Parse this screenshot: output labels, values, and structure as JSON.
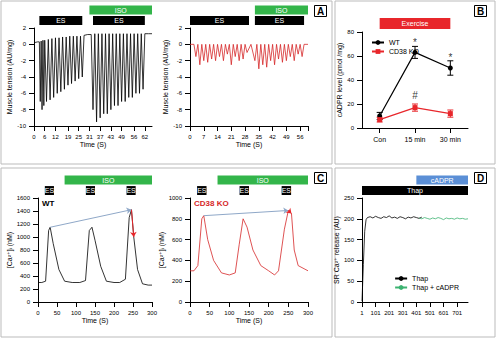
{
  "chart_data": [
    {
      "panel": "A",
      "type": "line",
      "x_label": "Time (S)",
      "y_label": "Muscle tension (AU/mg)",
      "x": [
        0,
        2,
        3,
        3.5,
        4,
        4.5,
        5,
        5.5,
        6,
        7,
        8,
        9,
        10,
        11,
        12,
        13,
        14,
        15,
        16,
        17,
        18,
        19,
        20,
        21,
        22,
        23,
        24,
        25,
        26,
        27,
        28,
        30,
        32,
        33,
        34,
        35,
        36,
        37,
        38,
        39,
        40,
        41,
        42,
        43,
        44,
        45,
        46,
        47,
        48,
        49,
        50,
        51,
        52,
        53,
        54,
        55,
        56,
        57,
        58,
        59,
        60,
        61,
        62,
        64,
        66
      ],
      "values": [
        0.2,
        0.3,
        0.3,
        -7,
        0.4,
        -8,
        0.5,
        -7.5,
        0.5,
        -7,
        0.6,
        -6.8,
        0.7,
        -6.5,
        0.8,
        -6,
        0.8,
        -5.8,
        0.9,
        -5.5,
        0.9,
        -5,
        1,
        -4.8,
        1,
        -4.5,
        1,
        -4.2,
        1,
        -4,
        1.1,
        1.2,
        1.2,
        -8,
        1.3,
        -9.5,
        1.3,
        -9,
        1.3,
        -8.5,
        1.3,
        -8.5,
        1.3,
        -8,
        1.3,
        -7.5,
        1.3,
        -7.5,
        1.3,
        -7,
        1.3,
        -7,
        1.3,
        -6.5,
        1.3,
        -6.5,
        1.3,
        -6,
        1.3,
        -6,
        1.3,
        -5.5,
        1.3,
        1.3,
        1.3
      ],
      "color": "#000000",
      "xlim": [
        0,
        66
      ],
      "xticks": [
        0,
        6,
        12,
        19,
        25,
        31,
        37,
        43,
        49,
        56,
        62
      ],
      "ylim": [
        -10,
        2
      ],
      "yticks": [
        -10,
        -8,
        -6,
        -4,
        -2,
        0,
        2
      ],
      "grid": false,
      "top_bars": [
        {
          "label": "ISO",
          "start": 31,
          "end": 66,
          "color": "#33b54a"
        }
      ],
      "bars": [
        {
          "label": "ES",
          "start": 3,
          "end": 27,
          "color": "#000000"
        },
        {
          "label": "ES",
          "start": 33,
          "end": 62,
          "color": "#000000"
        }
      ]
    },
    {
      "type": "line",
      "x_label": "Time (S)",
      "y_label": "Muscle tension (AU/mg)",
      "x": [
        0,
        2,
        3,
        4,
        5,
        6,
        7,
        8,
        9,
        10,
        11,
        12,
        13,
        14,
        15,
        16,
        17,
        18,
        19,
        20,
        21,
        22,
        23,
        24,
        25,
        26,
        27,
        28,
        29,
        31,
        33,
        34,
        35,
        36,
        37,
        38,
        39,
        40,
        41,
        42,
        43,
        44,
        45,
        46,
        47,
        48,
        49,
        50,
        51,
        52,
        53,
        54,
        55,
        56,
        57,
        58,
        60
      ],
      "values": [
        0,
        0,
        -1.5,
        0,
        -2.5,
        0,
        -2,
        0,
        -2.2,
        0,
        -1.8,
        0,
        -2,
        0,
        -1.5,
        0,
        -2,
        0,
        -1.2,
        0,
        -2.5,
        0,
        -1.5,
        0,
        -2,
        0,
        -1.8,
        0,
        -1,
        0,
        -2,
        0,
        -3,
        0,
        -2.5,
        0,
        -2.8,
        0,
        -2,
        0,
        -2.5,
        0,
        -1.8,
        0,
        -2.2,
        0,
        -2,
        0,
        -1.5,
        0,
        -2,
        0,
        -1.2,
        0,
        -1.5,
        0,
        0
      ],
      "color": "#d62728",
      "xlim": [
        0,
        60
      ],
      "xticks": [
        0,
        7,
        14,
        21,
        28,
        35,
        42,
        49,
        56
      ],
      "ylim": [
        -10,
        2
      ],
      "yticks": [
        -10,
        -8,
        -6,
        -4,
        -2,
        0,
        2
      ],
      "grid": false,
      "top_bars": [
        {
          "label": "ISO",
          "start": 33,
          "end": 60,
          "color": "#33b54a"
        }
      ],
      "bars": [
        {
          "label": "ES",
          "start": 0,
          "end": 30,
          "color": "#000000"
        },
        {
          "label": "ES",
          "start": 33,
          "end": 58,
          "color": "#000000"
        }
      ]
    },
    {
      "panel": "B",
      "type": "line",
      "y_label": "cADPR level (pmol /mg)",
      "categories": [
        "Con",
        "15 min",
        "30 min"
      ],
      "series": [
        {
          "name": "WT",
          "color": "#000000",
          "marker": "circle",
          "values": [
            10,
            63,
            50
          ],
          "errors": [
            3,
            5,
            6
          ]
        },
        {
          "name": "CD38 KO",
          "color": "#e8262b",
          "marker": "square",
          "values": [
            7,
            17,
            12
          ],
          "errors": [
            2,
            3,
            3
          ]
        }
      ],
      "ylim": [
        0,
        80
      ],
      "yticks": [
        0,
        20,
        40,
        60,
        80
      ],
      "grid": false,
      "legend": "upper left",
      "annotations": [
        {
          "text": "*",
          "x": "15 min",
          "y": 71
        },
        {
          "text": "*",
          "x": "30 min",
          "y": 59
        },
        {
          "text": "#",
          "x": "15 min",
          "y": 27
        }
      ],
      "top_bars": [
        {
          "label": "Exercise",
          "start": "Con",
          "end": "30 min",
          "color": "#e8262b"
        }
      ]
    },
    {
      "panel": "C",
      "type": "line",
      "title": "WT",
      "x_label": "Time (S)",
      "y_label": "[Ca²⁺]ᵢ (nM)",
      "x": [
        0,
        10,
        20,
        28,
        32,
        40,
        55,
        70,
        90,
        110,
        125,
        135,
        142,
        150,
        165,
        180,
        200,
        215,
        230,
        240,
        246,
        252,
        262,
        275,
        290,
        300
      ],
      "values": [
        300,
        300,
        320,
        1100,
        1150,
        900,
        500,
        320,
        300,
        300,
        330,
        1100,
        1150,
        950,
        550,
        320,
        300,
        300,
        350,
        1300,
        1420,
        1000,
        500,
        280,
        260,
        260
      ],
      "color": "#000000",
      "xlim": [
        0,
        300
      ],
      "xticks": [
        0,
        50,
        100,
        150,
        200,
        250,
        300
      ],
      "ylim": [
        0,
        1600
      ],
      "yticks": [
        0,
        200,
        400,
        600,
        800,
        1000,
        1200,
        1400,
        1600
      ],
      "grid": false,
      "top_bars": [
        {
          "label": "ISO",
          "start": 70,
          "end": 300,
          "color": "#33b54a"
        }
      ],
      "bars": [
        {
          "label": "ES",
          "start": 18,
          "end": 42,
          "color": "#000000"
        },
        {
          "label": "ES",
          "start": 126,
          "end": 150,
          "color": "#000000"
        },
        {
          "label": "ES",
          "start": 233,
          "end": 257,
          "color": "#000000"
        }
      ]
    },
    {
      "type": "line",
      "title": "CD38 KO",
      "x_label": "Time (S)",
      "y_label": "[Ca²⁺]ᵢ (nM)",
      "x": [
        0,
        10,
        20,
        30,
        35,
        45,
        60,
        80,
        100,
        115,
        125,
        135,
        145,
        160,
        180,
        200,
        215,
        225,
        240,
        250,
        258,
        265,
        275,
        290,
        300
      ],
      "values": [
        300,
        300,
        350,
        800,
        830,
        600,
        400,
        280,
        260,
        280,
        550,
        800,
        720,
        500,
        350,
        300,
        260,
        300,
        700,
        880,
        850,
        500,
        350,
        320,
        300
      ],
      "color": "#d62728",
      "xlim": [
        0,
        300
      ],
      "xticks": [
        0,
        50,
        100,
        150,
        200,
        250,
        300
      ],
      "ylim": [
        0,
        1000
      ],
      "yticks": [
        0,
        200,
        400,
        600,
        800,
        1000
      ],
      "grid": false,
      "top_bars": [
        {
          "label": "ISO",
          "start": 70,
          "end": 300,
          "color": "#33b54a"
        }
      ],
      "bars": [
        {
          "label": "ES",
          "start": 18,
          "end": 42,
          "color": "#000000"
        },
        {
          "label": "ES",
          "start": 126,
          "end": 150,
          "color": "#000000"
        },
        {
          "label": "ES",
          "start": 233,
          "end": 257,
          "color": "#000000"
        }
      ]
    },
    {
      "panel": "D",
      "type": "line",
      "y_label": "SR Ca²⁺ release (AU)",
      "x": [
        1,
        11,
        21,
        31,
        41,
        61,
        81,
        101,
        121,
        141,
        161,
        181,
        201,
        221,
        241,
        261,
        281,
        301,
        321,
        341,
        361,
        381,
        401,
        421,
        441,
        461,
        481,
        501,
        521,
        541,
        561,
        581,
        601,
        621,
        641,
        661,
        681,
        701,
        721,
        741,
        761,
        781
      ],
      "series": [
        {
          "name": "Thap",
          "color": "#000000",
          "values": [
            2,
            90,
            170,
            198,
            203,
            205,
            202,
            206,
            203,
            201,
            205,
            203,
            207,
            202,
            204,
            201,
            205,
            203,
            200,
            204,
            202,
            205,
            203,
            201,
            204,
            null,
            null,
            null,
            null,
            null,
            null,
            null,
            null,
            null,
            null,
            null,
            null,
            null,
            null,
            null,
            null,
            null
          ]
        },
        {
          "name": "Thap + cADPR",
          "color": "#3cb371",
          "values": [
            null,
            null,
            null,
            null,
            null,
            null,
            null,
            null,
            null,
            null,
            null,
            null,
            null,
            null,
            null,
            null,
            null,
            null,
            null,
            null,
            null,
            null,
            null,
            202,
            200,
            203,
            201,
            199,
            202,
            200,
            203,
            201,
            198,
            202,
            200,
            201,
            199,
            202,
            200,
            201,
            199,
            200
          ]
        }
      ],
      "xlim": [
        1,
        781
      ],
      "xticks": [
        1,
        101,
        201,
        301,
        401,
        501,
        601,
        701
      ],
      "ylim": [
        0,
        250
      ],
      "yticks": [
        0,
        50,
        100,
        150,
        200,
        250
      ],
      "grid": false,
      "legend": "lower right",
      "top_bars": [
        {
          "label": "cADPR",
          "start": 401,
          "end": 781,
          "color": "#5b8fd6"
        }
      ],
      "bars": [
        {
          "label": "Thap",
          "start": 1,
          "end": 781,
          "color": "#000000"
        }
      ]
    }
  ]
}
